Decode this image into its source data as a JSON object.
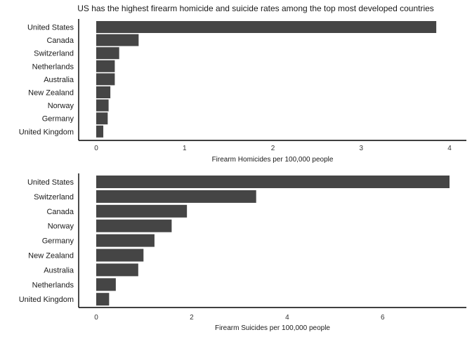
{
  "title": "US has the highest firearm homicide and suicide rates among the top most developed countries",
  "colors": {
    "bar": "#454545",
    "axis": "#000000"
  },
  "chart_data": [
    {
      "type": "bar",
      "orientation": "horizontal",
      "categories": [
        "United States",
        "Canada",
        "Switzerland",
        "Netherlands",
        "Australia",
        "New Zealand",
        "Norway",
        "Germany",
        "United Kingdom"
      ],
      "values": [
        3.85,
        0.48,
        0.26,
        0.21,
        0.21,
        0.16,
        0.14,
        0.13,
        0.08
      ],
      "xlabel": "Firearm Homicides per 100,000 people",
      "xlim": [
        0,
        4
      ],
      "xticks": [
        0,
        1,
        2,
        3,
        4
      ],
      "grid": false
    },
    {
      "type": "bar",
      "orientation": "horizontal",
      "categories": [
        "United States",
        "Switzerland",
        "Canada",
        "Norway",
        "Germany",
        "New Zealand",
        "Australia",
        "Netherlands",
        "United Kingdom"
      ],
      "values": [
        7.4,
        3.35,
        1.9,
        1.58,
        1.22,
        0.99,
        0.88,
        0.41,
        0.27
      ],
      "xlabel": "Firearm Suicides per 100,000 people",
      "xlim": [
        0,
        7.4
      ],
      "xticks": [
        0,
        2,
        4,
        6
      ],
      "grid": false
    }
  ]
}
